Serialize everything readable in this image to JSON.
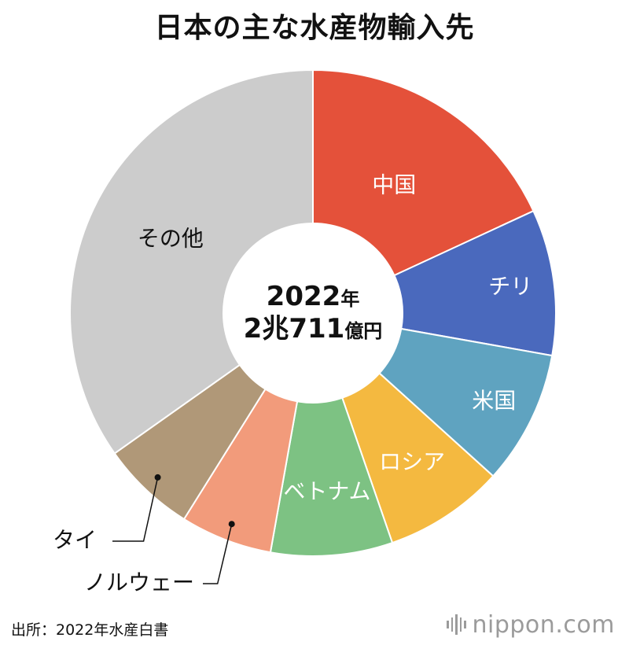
{
  "chart_data": {
    "type": "pie",
    "title": "日本の主な水産物輸入先",
    "center_label": {
      "line1_number": "2022",
      "line1_unit": "年",
      "line2_number": "2兆711",
      "line2_unit": "億円"
    },
    "categories": [
      "中国",
      "チリ",
      "米国",
      "ロシア",
      "ベトナム",
      "ノルウェー",
      "タイ",
      "その他"
    ],
    "values": [
      18.1,
      9.7,
      8.9,
      8.0,
      8.1,
      6.1,
      6.3,
      34.8
    ],
    "value_unit": "%",
    "colors": [
      "#e4513a",
      "#4a69bd",
      "#5fa3c0",
      "#f4b940",
      "#7dc283",
      "#f29b7b",
      "#b09878",
      "#cccccc"
    ],
    "label_colors": [
      "#ffffff",
      "#ffffff",
      "#ffffff",
      "#ffffff",
      "#ffffff",
      "#111111",
      "#111111",
      "#111111"
    ],
    "donut": true
  },
  "source": "出所：2022年水産白書",
  "brand": {
    "name": "nippon",
    "tld": "com"
  }
}
